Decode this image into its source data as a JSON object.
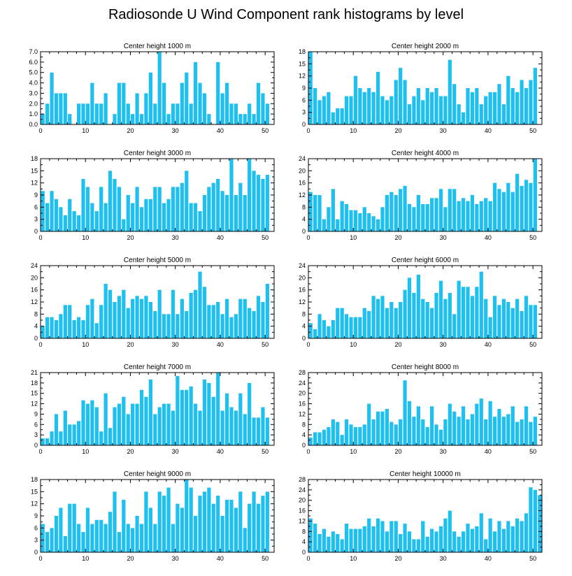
{
  "title": "Radiosonde U Wind Component rank histograms by level",
  "colors": {
    "bar": "#1ec0f0",
    "bar_edge": "#ffffff",
    "axis": "#000000",
    "background": "#ffffff"
  },
  "chart_data": [
    {
      "type": "bar",
      "title": "Center height 1000 m",
      "xlim": [
        0,
        52
      ],
      "xticks": [
        0,
        10,
        20,
        30,
        40,
        50
      ],
      "ylim": [
        0,
        7
      ],
      "yticks": [
        0.0,
        1.0,
        2.0,
        3.0,
        4.0,
        5.0,
        6.0,
        7.0
      ],
      "ytick_labels": [
        "0.0",
        "1.0",
        "2.0",
        "3.0",
        "4.0",
        "5.0",
        "6.0",
        "7.0"
      ],
      "tick_side": "left",
      "values": [
        1,
        2,
        5,
        3,
        3,
        3,
        1,
        0,
        2,
        2,
        2,
        4,
        2,
        2,
        3,
        0,
        1,
        4,
        4,
        2,
        1,
        3,
        1,
        3,
        5,
        2,
        7,
        4,
        1,
        2,
        2,
        4,
        5,
        2,
        6,
        4,
        3,
        1,
        0,
        6,
        3,
        4,
        2,
        2,
        1,
        1,
        2,
        1,
        4,
        3,
        2
      ]
    },
    {
      "type": "bar",
      "title": "Center height 2000 m",
      "xlim": [
        0,
        52
      ],
      "xticks": [
        0,
        10,
        20,
        30,
        40,
        50
      ],
      "ylim": [
        0,
        18
      ],
      "yticks": [
        0,
        3,
        6,
        9,
        12,
        15,
        18
      ],
      "ytick_labels": [
        "0",
        "3",
        "6",
        "9",
        "12",
        "15",
        "18"
      ],
      "tick_side": "left",
      "values": [
        18,
        9,
        6,
        7,
        8,
        3,
        4,
        4,
        7,
        7,
        12,
        9,
        8,
        9,
        8,
        13,
        7,
        6,
        7,
        11,
        14,
        11,
        5,
        7,
        9,
        6,
        9,
        8,
        9,
        7,
        7,
        16,
        10,
        5,
        3,
        9,
        8,
        9,
        5,
        7,
        8,
        8,
        10,
        5,
        12,
        9,
        8,
        11,
        9,
        11,
        14
      ]
    },
    {
      "type": "bar",
      "title": "Center height 3000 m",
      "xlim": [
        0,
        52
      ],
      "xticks": [
        0,
        10,
        20,
        30,
        40,
        50
      ],
      "ylim": [
        0,
        18
      ],
      "yticks": [
        0,
        3,
        6,
        9,
        12,
        15,
        18
      ],
      "ytick_labels": [
        "0",
        "3",
        "6",
        "9",
        "12",
        "15",
        "18"
      ],
      "tick_side": "left",
      "values": [
        10,
        7,
        10,
        8,
        6,
        4,
        8,
        5,
        4,
        13,
        11,
        7,
        5,
        11,
        7,
        15,
        13,
        11,
        3,
        9,
        7,
        11,
        6,
        8,
        8,
        11,
        11,
        7,
        8,
        11,
        11,
        12,
        15,
        7,
        7,
        5,
        9,
        11,
        12,
        13,
        10,
        9,
        18,
        9,
        12,
        9,
        18,
        15,
        14,
        13,
        14
      ]
    },
    {
      "type": "bar",
      "title": "Center height 4000 m",
      "xlim": [
        0,
        52
      ],
      "xticks": [
        0,
        10,
        20,
        30,
        40,
        50
      ],
      "ylim": [
        0,
        24
      ],
      "yticks": [
        0,
        4,
        8,
        12,
        16,
        20,
        24
      ],
      "ytick_labels": [
        "0",
        "4",
        "8",
        "12",
        "16",
        "20",
        "24"
      ],
      "tick_side": "left",
      "values": [
        13,
        12,
        12,
        4,
        8,
        14,
        4,
        10,
        9,
        7,
        7,
        6,
        8,
        6,
        5,
        4,
        8,
        12,
        13,
        12,
        14,
        15,
        9,
        8,
        12,
        9,
        9,
        11,
        11,
        14,
        8,
        14,
        14,
        10,
        11,
        10,
        12,
        9,
        10,
        11,
        10,
        16,
        14,
        13,
        16,
        13,
        19,
        15,
        17,
        16,
        24
      ]
    },
    {
      "type": "bar",
      "title": "Center height 5000 m",
      "xlim": [
        0,
        52
      ],
      "xticks": [
        0,
        10,
        20,
        30,
        40,
        50
      ],
      "ylim": [
        0,
        24
      ],
      "yticks": [
        0,
        4,
        8,
        12,
        16,
        20,
        24
      ],
      "ytick_labels": [
        "0",
        "4",
        "8",
        "12",
        "16",
        "20",
        "24"
      ],
      "tick_side": "left",
      "values": [
        4,
        7,
        7,
        6,
        8,
        11,
        11,
        6,
        7,
        6,
        11,
        13,
        5,
        11,
        18,
        16,
        12,
        14,
        16,
        10,
        13,
        14,
        13,
        14,
        12,
        9,
        16,
        8,
        8,
        16,
        8,
        13,
        9,
        15,
        16,
        22,
        17,
        11,
        11,
        12,
        8,
        13,
        7,
        8,
        13,
        13,
        10,
        9,
        14,
        12,
        18
      ]
    },
    {
      "type": "bar",
      "title": "Center height 6000 m",
      "xlim": [
        0,
        52
      ],
      "xticks": [
        0,
        10,
        20,
        30,
        40,
        50
      ],
      "ylim": [
        0,
        24
      ],
      "yticks": [
        0,
        4,
        8,
        12,
        16,
        20,
        24
      ],
      "ytick_labels": [
        "0",
        "4",
        "8",
        "12",
        "16",
        "20",
        "24"
      ],
      "tick_side": "left",
      "values": [
        5,
        3,
        8,
        6,
        4,
        6,
        10,
        10,
        8,
        7,
        7,
        7,
        10,
        9,
        14,
        13,
        14,
        10,
        12,
        10,
        12,
        16,
        20,
        15,
        21,
        13,
        12,
        10,
        15,
        19,
        13,
        15,
        8,
        19,
        17,
        17,
        14,
        17,
        22,
        13,
        7,
        14,
        11,
        13,
        12,
        10,
        13,
        9,
        14,
        11,
        11
      ]
    },
    {
      "type": "bar",
      "title": "Center height 7000 m",
      "xlim": [
        0,
        52
      ],
      "xticks": [
        0,
        10,
        20,
        30,
        40,
        50
      ],
      "ylim": [
        0,
        21
      ],
      "yticks": [
        0,
        3,
        6,
        9,
        12,
        15,
        18,
        21
      ],
      "ytick_labels": [
        "0",
        "3",
        "6",
        "9",
        "12",
        "15",
        "18",
        "21"
      ],
      "tick_side": "left",
      "values": [
        2,
        2,
        4,
        9,
        4,
        10,
        6,
        6,
        7,
        13,
        12,
        13,
        11,
        4,
        15,
        5,
        11,
        12,
        14,
        9,
        12,
        12,
        16,
        14,
        19,
        9,
        11,
        12,
        12,
        10,
        20,
        16,
        16,
        17,
        12,
        10,
        19,
        18,
        14,
        21,
        10,
        15,
        11,
        10,
        15,
        9,
        18,
        8,
        8,
        11,
        8
      ]
    },
    {
      "type": "bar",
      "title": "Center height 8000 m",
      "xlim": [
        0,
        52
      ],
      "xticks": [
        0,
        10,
        20,
        30,
        40,
        50
      ],
      "ylim": [
        0,
        28
      ],
      "yticks": [
        0,
        4,
        8,
        12,
        16,
        20,
        24,
        28
      ],
      "ytick_labels": [
        "0",
        "4",
        "8",
        "12",
        "16",
        "20",
        "24",
        "28"
      ],
      "tick_side": "left",
      "values": [
        3,
        5,
        5,
        6,
        7,
        10,
        9,
        4,
        10,
        8,
        7,
        7,
        8,
        16,
        10,
        13,
        13,
        14,
        9,
        8,
        10,
        25,
        17,
        11,
        15,
        10,
        7,
        15,
        8,
        6,
        10,
        16,
        13,
        11,
        15,
        10,
        12,
        16,
        18,
        10,
        17,
        11,
        14,
        11,
        12,
        15,
        9,
        10,
        15,
        9,
        11
      ]
    },
    {
      "type": "bar",
      "title": "Center height 9000 m",
      "xlim": [
        0,
        52
      ],
      "xticks": [
        0,
        10,
        20,
        30,
        40,
        50
      ],
      "ylim": [
        0,
        18
      ],
      "yticks": [
        0,
        3,
        6,
        9,
        12,
        15,
        18
      ],
      "ytick_labels": [
        "0",
        "3",
        "6",
        "9",
        "12",
        "15",
        "18"
      ],
      "tick_side": "left",
      "values": [
        7,
        5,
        6,
        9,
        11,
        4,
        12,
        12,
        7,
        5,
        11,
        7,
        8,
        8,
        7,
        10,
        15,
        5,
        13,
        7,
        6,
        9,
        7,
        15,
        11,
        7,
        15,
        14,
        16,
        7,
        12,
        11,
        18,
        16,
        9,
        14,
        15,
        16,
        12,
        14,
        9,
        13,
        13,
        11,
        15,
        6,
        12,
        15,
        12,
        14,
        15
      ]
    },
    {
      "type": "bar",
      "title": "Center height 10000 m",
      "xlim": [
        0,
        52
      ],
      "xticks": [
        0,
        10,
        20,
        30,
        40,
        50
      ],
      "ylim": [
        0,
        28
      ],
      "yticks": [
        0,
        4,
        8,
        12,
        16,
        20,
        24,
        28
      ],
      "ytick_labels": [
        "0",
        "4",
        "8",
        "12",
        "16",
        "20",
        "24",
        "28"
      ],
      "tick_side": "left",
      "values": [
        13,
        11,
        7,
        9,
        6,
        8,
        7,
        5,
        11,
        9,
        9,
        9,
        10,
        13,
        10,
        13,
        12,
        8,
        12,
        12,
        7,
        11,
        8,
        5,
        5,
        12,
        6,
        9,
        8,
        10,
        13,
        16,
        8,
        6,
        8,
        11,
        9,
        10,
        15,
        5,
        13,
        8,
        12,
        9,
        12,
        10,
        13,
        12,
        15,
        25,
        24,
        22
      ]
    }
  ]
}
